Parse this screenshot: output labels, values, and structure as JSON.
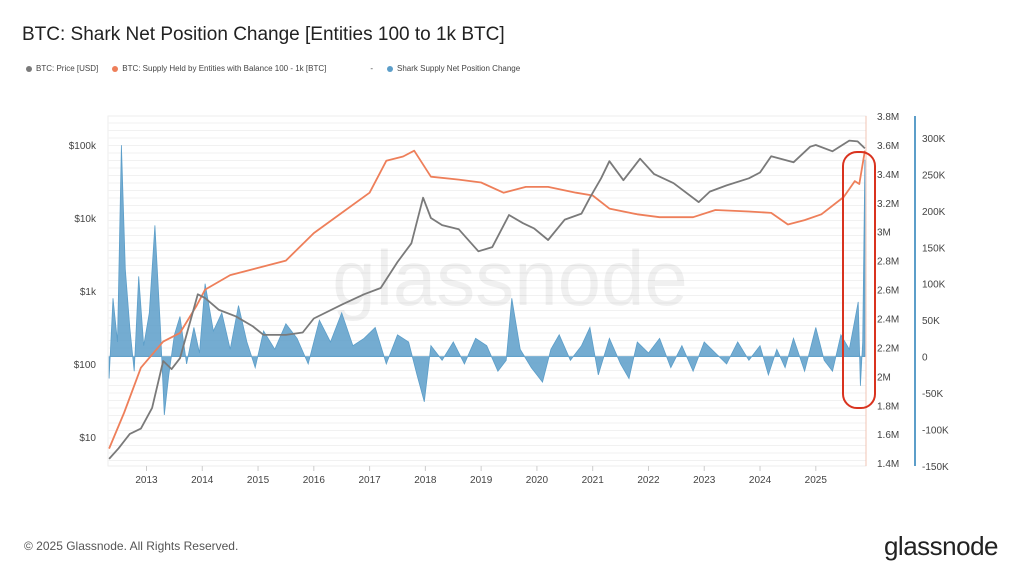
{
  "title": "BTC: Shark Net Position Change [Entities 100 to 1k BTC]",
  "footer": "© 2025 Glassnode. All Rights Reserved.",
  "logo": "glassnode",
  "watermark": "glassnode",
  "legend": [
    {
      "label": "BTC: Price [USD]",
      "color": "#7a7a7a"
    },
    {
      "label": "BTC: Supply Held by Entities with Balance 100 - 1k [BTC]",
      "color": "#ee7f5a"
    },
    {
      "label": "-",
      "color": ""
    },
    {
      "label": "Shark Supply Net Position Change",
      "color": "#5c9ec9"
    }
  ],
  "chart_data": {
    "type": "line",
    "title": "BTC: Shark Net Position Change [Entities 100 to 1k BTC]",
    "x_ticks": [
      "2013",
      "2014",
      "2015",
      "2016",
      "2017",
      "2018",
      "2019",
      "2020",
      "2021",
      "2022",
      "2023",
      "2024",
      "2025"
    ],
    "xlim": [
      2012.31,
      2025.9
    ],
    "axes": {
      "price": {
        "scale": "log",
        "ticks": [
          "$10",
          "$100",
          "$1k",
          "$10k",
          "$100k"
        ],
        "ylim": [
          4,
          250000
        ],
        "position": "left"
      },
      "supply": {
        "scale": "linear",
        "ticks": [
          "1.4M",
          "1.6M",
          "1.8M",
          "2M",
          "2.2M",
          "2.4M",
          "2.6M",
          "2.8M",
          "3M",
          "3.2M",
          "3.4M",
          "3.6M",
          "3.8M"
        ],
        "ylim": [
          1.38,
          3.8
        ],
        "unit": "M",
        "position": "right-inner"
      },
      "net": {
        "scale": "linear",
        "ticks": [
          "-150K",
          "-100K",
          "-50K",
          "0",
          "50K",
          "100K",
          "150K",
          "200K",
          "250K",
          "300K"
        ],
        "ylim": [
          -150,
          330
        ],
        "unit": "K",
        "position": "right-outer"
      }
    },
    "grid": true,
    "legend_position": "top-left",
    "series": [
      {
        "name": "BTC: Price [USD]",
        "axis": "price",
        "color": "#7a7a7a",
        "x": [
          2012.33,
          2012.5,
          2012.7,
          2012.9,
          2013.1,
          2013.3,
          2013.45,
          2013.6,
          2013.92,
          2014.05,
          2014.3,
          2014.6,
          2014.9,
          2015.1,
          2015.5,
          2015.8,
          2016.0,
          2016.5,
          2016.9,
          2017.2,
          2017.5,
          2017.75,
          2017.96,
          2018.1,
          2018.3,
          2018.6,
          2018.95,
          2019.2,
          2019.5,
          2019.75,
          2019.95,
          2020.2,
          2020.5,
          2020.8,
          2020.95,
          2021.15,
          2021.3,
          2021.55,
          2021.85,
          2022.1,
          2022.45,
          2022.9,
          2023.1,
          2023.4,
          2023.8,
          2024.0,
          2024.2,
          2024.6,
          2024.9,
          2025.0,
          2025.3,
          2025.6,
          2025.75,
          2025.88
        ],
        "y": [
          5,
          7,
          11,
          13,
          25,
          110,
          85,
          120,
          900,
          800,
          550,
          450,
          330,
          250,
          250,
          270,
          420,
          650,
          900,
          1100,
          2500,
          4500,
          19000,
          10000,
          8000,
          7000,
          3500,
          4000,
          11000,
          8500,
          7200,
          5000,
          9500,
          11500,
          19000,
          35000,
          60000,
          33000,
          65000,
          40000,
          30000,
          16500,
          23000,
          28000,
          35000,
          42000,
          70000,
          58000,
          95000,
          100000,
          82000,
          115000,
          112000,
          90000
        ]
      },
      {
        "name": "BTC: Supply Held by Entities with Balance 100 - 1k [BTC]",
        "axis": "supply",
        "color": "#ee7f5a",
        "x": [
          2012.33,
          2012.6,
          2012.9,
          2013.1,
          2013.3,
          2013.6,
          2013.9,
          2014.05,
          2014.5,
          2015.0,
          2015.5,
          2016.0,
          2016.5,
          2017.0,
          2017.3,
          2017.6,
          2017.8,
          2018.1,
          2018.6,
          2019.0,
          2019.4,
          2019.8,
          2020.2,
          2020.7,
          2021.0,
          2021.3,
          2021.8,
          2022.2,
          2022.8,
          2023.2,
          2023.8,
          2024.2,
          2024.5,
          2024.8,
          2025.1,
          2025.5,
          2025.7,
          2025.78,
          2025.88
        ],
        "y": [
          1.5,
          1.75,
          2.06,
          2.15,
          2.24,
          2.3,
          2.49,
          2.6,
          2.7,
          2.75,
          2.8,
          2.99,
          3.13,
          3.27,
          3.49,
          3.52,
          3.56,
          3.38,
          3.36,
          3.34,
          3.27,
          3.31,
          3.31,
          3.27,
          3.25,
          3.16,
          3.12,
          3.1,
          3.1,
          3.15,
          3.14,
          3.13,
          3.05,
          3.08,
          3.12,
          3.24,
          3.35,
          3.33,
          3.56
        ]
      },
      {
        "name": "Shark Supply Net Position Change",
        "axis": "net",
        "color": "#5c9ec9",
        "x": [
          2012.33,
          2012.4,
          2012.48,
          2012.55,
          2012.62,
          2012.7,
          2012.78,
          2012.86,
          2012.95,
          2013.05,
          2013.15,
          2013.25,
          2013.32,
          2013.4,
          2013.5,
          2013.6,
          2013.72,
          2013.85,
          2013.95,
          2014.05,
          2014.2,
          2014.35,
          2014.5,
          2014.65,
          2014.8,
          2014.95,
          2015.1,
          2015.3,
          2015.5,
          2015.7,
          2015.9,
          2016.1,
          2016.3,
          2016.5,
          2016.7,
          2016.9,
          2017.1,
          2017.3,
          2017.5,
          2017.7,
          2017.85,
          2017.98,
          2018.1,
          2018.3,
          2018.5,
          2018.7,
          2018.9,
          2019.1,
          2019.3,
          2019.45,
          2019.55,
          2019.7,
          2019.9,
          2020.1,
          2020.25,
          2020.4,
          2020.6,
          2020.8,
          2020.95,
          2021.1,
          2021.3,
          2021.5,
          2021.65,
          2021.8,
          2022.0,
          2022.2,
          2022.4,
          2022.6,
          2022.8,
          2023.0,
          2023.2,
          2023.4,
          2023.6,
          2023.8,
          2024.0,
          2024.15,
          2024.3,
          2024.45,
          2024.6,
          2024.8,
          2025.0,
          2025.15,
          2025.3,
          2025.45,
          2025.6,
          2025.7,
          2025.76,
          2025.8,
          2025.84,
          2025.88
        ],
        "y": [
          -30,
          80,
          20,
          290,
          120,
          40,
          -20,
          110,
          15,
          60,
          180,
          40,
          -80,
          -25,
          30,
          55,
          -10,
          40,
          5,
          100,
          35,
          60,
          10,
          70,
          20,
          -15,
          35,
          10,
          45,
          25,
          -10,
          50,
          20,
          60,
          15,
          25,
          40,
          -10,
          30,
          20,
          -25,
          -62,
          15,
          -5,
          20,
          -10,
          25,
          15,
          -20,
          -5,
          80,
          10,
          -15,
          -35,
          10,
          30,
          -5,
          15,
          40,
          -25,
          25,
          -10,
          -30,
          20,
          5,
          25,
          -15,
          15,
          -20,
          20,
          5,
          -10,
          20,
          -5,
          15,
          -25,
          10,
          -15,
          25,
          -20,
          40,
          -5,
          -20,
          30,
          10,
          50,
          75,
          -40,
          20,
          270
        ]
      }
    ]
  }
}
